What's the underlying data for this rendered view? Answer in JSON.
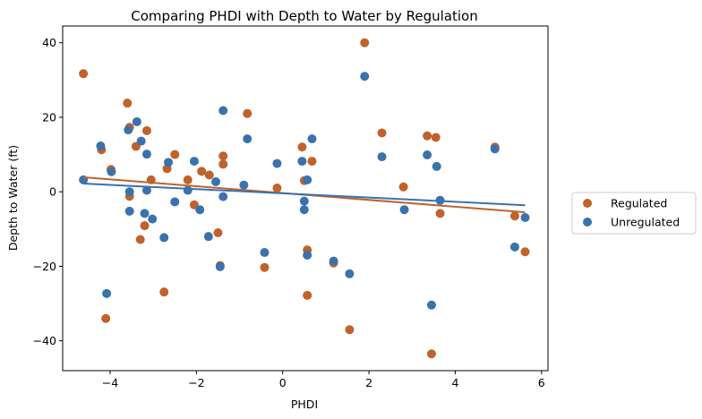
{
  "chart_data": {
    "type": "scatter",
    "title": "Comparing PHDI with Depth to Water by Regulation",
    "xlabel": "PHDI",
    "ylabel": "Depth to Water (ft)",
    "xlim": [
      -5.1,
      6.15
    ],
    "ylim": [
      -48,
      44.5
    ],
    "xticks": [
      -4,
      -2,
      0,
      2,
      4,
      6
    ],
    "yticks": [
      -40,
      -20,
      0,
      20,
      40
    ],
    "grid": false,
    "legend_position": "right, outside plot",
    "series": [
      {
        "name": "Regulated",
        "color": "#c0622b",
        "points": [
          [
            -4.62,
            31.7
          ],
          [
            -4.2,
            11.3
          ],
          [
            -4.1,
            -34.0
          ],
          [
            -3.98,
            6.0
          ],
          [
            -3.6,
            23.8
          ],
          [
            -3.55,
            17.3
          ],
          [
            -3.55,
            -1.2
          ],
          [
            -3.4,
            12.2
          ],
          [
            -3.3,
            -12.8
          ],
          [
            -3.2,
            -9.1
          ],
          [
            -3.15,
            16.4
          ],
          [
            -3.05,
            3.2
          ],
          [
            -2.75,
            -26.9
          ],
          [
            -2.68,
            6.2
          ],
          [
            -2.5,
            10.0
          ],
          [
            -2.2,
            3.2
          ],
          [
            -2.05,
            -3.5
          ],
          [
            -1.88,
            5.5
          ],
          [
            -1.7,
            4.5
          ],
          [
            -1.5,
            -11.0
          ],
          [
            -1.45,
            -19.8
          ],
          [
            -1.38,
            9.6
          ],
          [
            -1.38,
            7.4
          ],
          [
            -0.82,
            21.0
          ],
          [
            -0.42,
            -20.3
          ],
          [
            -0.13,
            1.0
          ],
          [
            0.45,
            12.0
          ],
          [
            0.5,
            3.0
          ],
          [
            0.57,
            -15.6
          ],
          [
            0.57,
            -27.8
          ],
          [
            0.68,
            8.2
          ],
          [
            1.18,
            -19.1
          ],
          [
            1.55,
            -37.0
          ],
          [
            1.9,
            40.0
          ],
          [
            2.3,
            15.8
          ],
          [
            2.8,
            1.3
          ],
          [
            3.35,
            15.0
          ],
          [
            3.45,
            -43.5
          ],
          [
            3.55,
            14.6
          ],
          [
            3.65,
            -5.8
          ],
          [
            4.92,
            12.0
          ],
          [
            5.38,
            -6.5
          ],
          [
            5.62,
            -16.1
          ]
        ],
        "trend": [
          [
            -4.62,
            3.9
          ],
          [
            5.62,
            -5.5
          ]
        ]
      },
      {
        "name": "Unregulated",
        "color": "#3a72ad",
        "points": [
          [
            -4.62,
            3.2
          ],
          [
            -4.22,
            12.3
          ],
          [
            -4.08,
            -27.3
          ],
          [
            -3.97,
            5.4
          ],
          [
            -3.58,
            16.6
          ],
          [
            -3.55,
            -5.2
          ],
          [
            -3.55,
            0.0
          ],
          [
            -3.38,
            18.8
          ],
          [
            -3.28,
            13.6
          ],
          [
            -3.2,
            -5.8
          ],
          [
            -3.15,
            10.1
          ],
          [
            -3.15,
            0.4
          ],
          [
            -3.02,
            -7.3
          ],
          [
            -2.75,
            -12.3
          ],
          [
            -2.65,
            7.9
          ],
          [
            -2.5,
            -2.7
          ],
          [
            -2.2,
            0.4
          ],
          [
            -2.05,
            8.2
          ],
          [
            -1.92,
            -4.8
          ],
          [
            -1.72,
            -12.0
          ],
          [
            -1.55,
            2.7
          ],
          [
            -1.45,
            -20.1
          ],
          [
            -1.38,
            21.8
          ],
          [
            -1.38,
            -1.3
          ],
          [
            -0.9,
            1.8
          ],
          [
            -0.82,
            14.2
          ],
          [
            -0.42,
            -16.3
          ],
          [
            -0.13,
            7.6
          ],
          [
            0.45,
            8.2
          ],
          [
            0.5,
            -2.5
          ],
          [
            0.5,
            -4.8
          ],
          [
            0.57,
            3.2
          ],
          [
            0.57,
            -17.0
          ],
          [
            0.68,
            14.2
          ],
          [
            1.18,
            -18.6
          ],
          [
            1.55,
            -22.0
          ],
          [
            1.9,
            31.0
          ],
          [
            2.3,
            9.4
          ],
          [
            2.82,
            -4.8
          ],
          [
            3.35,
            9.9
          ],
          [
            3.45,
            -30.4
          ],
          [
            3.57,
            6.8
          ],
          [
            3.65,
            -2.3
          ],
          [
            4.92,
            11.5
          ],
          [
            5.38,
            -14.8
          ],
          [
            5.62,
            -6.9
          ]
        ],
        "trend": [
          [
            -4.62,
            2.2
          ],
          [
            5.62,
            -3.6
          ]
        ]
      }
    ]
  }
}
